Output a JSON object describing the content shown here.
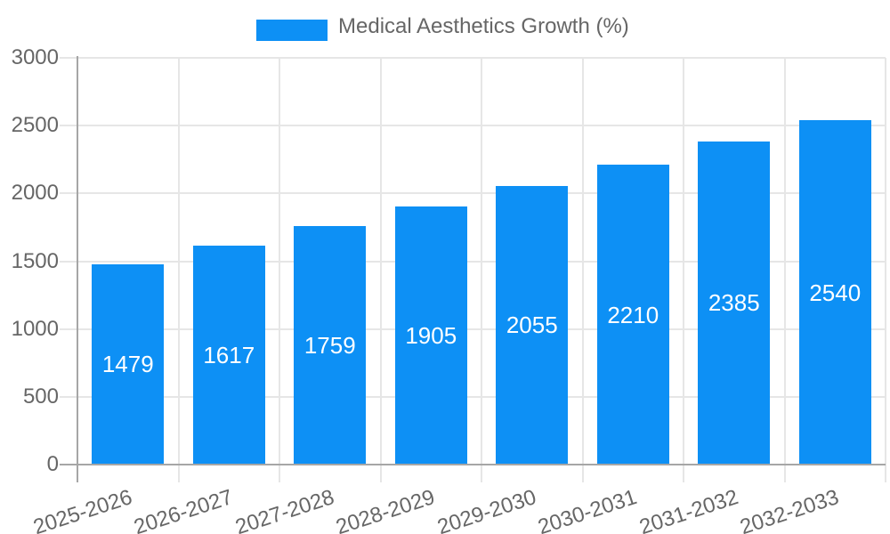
{
  "chart_data": {
    "type": "bar",
    "title": "Medical Aesthetics Growth (%)",
    "legend": {
      "label": "Medical Aesthetics Growth (%)",
      "position": "top-center"
    },
    "categories": [
      "2025-2026",
      "2026-2027",
      "2027-2028",
      "2028-2029",
      "2029-2030",
      "2030-2031",
      "2031-2032",
      "2032-2033"
    ],
    "series": [
      {
        "name": "Medical Aesthetics Growth (%)",
        "values": [
          1479,
          1617,
          1759,
          1905,
          2055,
          2210,
          2385,
          2540
        ]
      }
    ],
    "bar_value_labels": [
      "1479",
      "1617",
      "1759",
      "1905",
      "2055",
      "2210",
      "2385",
      "2540"
    ],
    "xlabel": "",
    "ylabel": "",
    "yticks": [
      0,
      500,
      1000,
      1500,
      2000,
      2500,
      3000
    ],
    "ylim": [
      0,
      3000
    ],
    "grid": true,
    "value_labels_inside_bars": true,
    "x_label_rotation_deg": -18
  },
  "colors": {
    "bar": "#0d90f5",
    "gridline": "#e6e6e6",
    "axis_line": "#a6a6a6",
    "tick_text": "#666666",
    "legend_text": "#666666",
    "bar_value_text": "#ffffff",
    "background": "#ffffff"
  }
}
